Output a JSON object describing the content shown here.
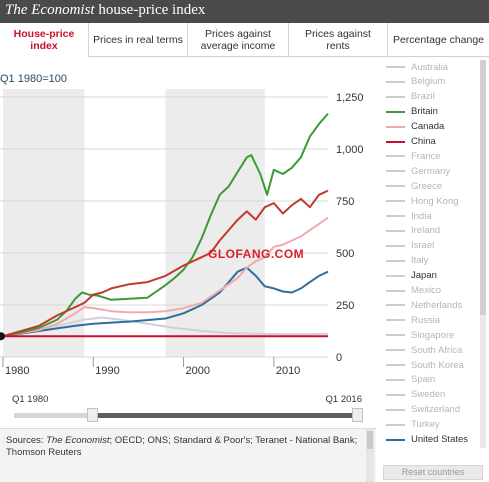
{
  "app_title_italic": "The Economist",
  "app_title_rest": " house-price index",
  "tabs": [
    {
      "label": "House-price index",
      "active": true
    },
    {
      "label": "Prices in real terms",
      "active": false
    },
    {
      "label": "Prices against average income",
      "active": false
    },
    {
      "label": "Prices against rents",
      "active": false
    },
    {
      "label": "Percentage change",
      "active": false
    }
  ],
  "base_label": "Q1 1980=100",
  "watermark": "GLOFANG.COM",
  "slider": {
    "start_label": "Q1 1980",
    "end_label": "Q1 2016"
  },
  "sources": {
    "prefix": "Sources: ",
    "italic": "The Economist",
    "rest": "; OECD; ONS; Standard & Poor's; Teranet - National Bank; Thomson Reuters"
  },
  "reset_label": "Reset countries",
  "legend": [
    {
      "name": "Australia",
      "active": false,
      "color": "#cccccc"
    },
    {
      "name": "Belgium",
      "active": false,
      "color": "#cccccc"
    },
    {
      "name": "Brazil",
      "active": false,
      "color": "#cccccc"
    },
    {
      "name": "Britain",
      "active": true,
      "color": "#3a9a35"
    },
    {
      "name": "Canada",
      "active": true,
      "color": "#f2a9ad"
    },
    {
      "name": "China",
      "active": true,
      "color": "#c8102e"
    },
    {
      "name": "France",
      "active": false,
      "color": "#cccccc"
    },
    {
      "name": "Germany",
      "active": false,
      "color": "#cccccc"
    },
    {
      "name": "Greece",
      "active": false,
      "color": "#cccccc"
    },
    {
      "name": "Hong Kong",
      "active": false,
      "color": "#cccccc"
    },
    {
      "name": "India",
      "active": false,
      "color": "#cccccc"
    },
    {
      "name": "Ireland",
      "active": false,
      "color": "#cccccc"
    },
    {
      "name": "Israel",
      "active": false,
      "color": "#cccccc"
    },
    {
      "name": "Italy",
      "active": false,
      "color": "#cccccc"
    },
    {
      "name": "Japan",
      "active": true,
      "color": "#d3cfd9"
    },
    {
      "name": "Mexico",
      "active": false,
      "color": "#cccccc"
    },
    {
      "name": "Netherlands",
      "active": false,
      "color": "#cccccc"
    },
    {
      "name": "Russia",
      "active": false,
      "color": "#cccccc"
    },
    {
      "name": "Singapore",
      "active": false,
      "color": "#cccccc"
    },
    {
      "name": "South Africa",
      "active": false,
      "color": "#cccccc"
    },
    {
      "name": "South Korea",
      "active": false,
      "color": "#cccccc"
    },
    {
      "name": "Spain",
      "active": false,
      "color": "#cccccc"
    },
    {
      "name": "Sweden",
      "active": false,
      "color": "#cccccc"
    },
    {
      "name": "Switzerland",
      "active": false,
      "color": "#cccccc"
    },
    {
      "name": "Turkey",
      "active": false,
      "color": "#cccccc"
    },
    {
      "name": "United States",
      "active": true,
      "color": "#2f6e9e"
    }
  ],
  "chart_data": {
    "type": "line",
    "title": "",
    "xlabel": "",
    "ylabel": "",
    "xlim": [
      1980,
      2016
    ],
    "ylim": [
      0,
      1250
    ],
    "x_ticks": [
      1980,
      1990,
      2000,
      2010
    ],
    "x_tick_labels": [
      "1980",
      "1990",
      "2000",
      "2010"
    ],
    "y_ticks": [
      0,
      250,
      500,
      750,
      1000,
      1250
    ],
    "y_tick_labels": [
      "0",
      "250",
      "500",
      "750",
      "1,000",
      "1,250"
    ],
    "baseline": 100,
    "grid": true,
    "shaded_ranges": [
      [
        1980,
        1989
      ],
      [
        1998,
        2009
      ]
    ],
    "series": [
      {
        "name": "Britain",
        "color": "#3a9a35",
        "x": [
          1980,
          1982,
          1984,
          1986,
          1987,
          1988,
          1988.75,
          1989.5,
          1990.5,
          1992,
          1994,
          1996,
          1998,
          1999,
          2000,
          2001,
          2002,
          2003,
          2004,
          2005,
          2006,
          2007,
          2007.5,
          2008.5,
          2009.25,
          2010,
          2011,
          2012,
          2013,
          2014,
          2015,
          2016
        ],
        "y": [
          100,
          118,
          140,
          180,
          220,
          280,
          310,
          300,
          295,
          275,
          280,
          285,
          345,
          380,
          420,
          480,
          570,
          680,
          780,
          820,
          890,
          960,
          970,
          880,
          780,
          900,
          880,
          910,
          960,
          1060,
          1120,
          1170
        ]
      },
      {
        "name": "Canada",
        "color": "#f2a9ad",
        "x": [
          1980,
          1982,
          1984,
          1986,
          1988,
          1989,
          1990,
          1992,
          1994,
          1996,
          1998,
          2000,
          2002,
          2004,
          2006,
          2007,
          2008,
          2009,
          2010,
          2011,
          2012,
          2013,
          2014,
          2015,
          2016
        ],
        "y": [
          100,
          115,
          130,
          160,
          210,
          240,
          235,
          220,
          215,
          215,
          220,
          235,
          260,
          320,
          380,
          430,
          460,
          480,
          530,
          540,
          560,
          580,
          610,
          640,
          670
        ]
      },
      {
        "name": "China",
        "color": "#c8102e",
        "x": [
          1980,
          1982,
          1984,
          1986,
          1987,
          1988,
          1989,
          1990,
          1992,
          1994,
          1996,
          1998,
          2000,
          2002,
          2004,
          2005,
          2006,
          2007,
          2008,
          2009,
          2010,
          2011,
          2012,
          2013,
          2014,
          2015,
          2016
        ],
        "y": [
          100,
          100,
          100,
          100,
          100,
          100,
          100,
          100,
          100,
          100,
          100,
          100,
          100,
          100,
          100,
          100,
          100,
          100,
          100,
          100,
          100,
          100,
          100,
          100,
          100,
          100,
          100
        ]
      },
      {
        "name": "Japan",
        "color": "#d3cfd9",
        "x": [
          1980,
          1983,
          1986,
          1989,
          1991,
          1993,
          1996,
          1999,
          2002,
          2005,
          2008,
          2011,
          2014,
          2016
        ],
        "y": [
          100,
          120,
          150,
          180,
          190,
          180,
          160,
          140,
          125,
          115,
          112,
          110,
          110,
          112
        ]
      },
      {
        "name": "United States",
        "color": "#2f6e9e",
        "x": [
          1980,
          1984,
          1988,
          1990,
          1994,
          1998,
          2000,
          2002,
          2004,
          2005,
          2006,
          2007,
          2008,
          2009,
          2010,
          2011,
          2012,
          2013,
          2014,
          2015,
          2016
        ],
        "y": [
          100,
          125,
          150,
          160,
          170,
          185,
          210,
          250,
          310,
          360,
          410,
          430,
          390,
          340,
          330,
          315,
          310,
          330,
          360,
          390,
          410
        ]
      }
    ],
    "extra_series_unlabeled": [
      {
        "color": "#c0392b",
        "x": [
          1980,
          1984,
          1986,
          1988,
          1989,
          1990,
          1991,
          1992,
          1994,
          1996,
          1998,
          2000,
          2002,
          2003,
          2004,
          2005,
          2006,
          2007,
          2008,
          2009,
          2010,
          2011,
          2012,
          2013,
          2014,
          2015,
          2016
        ],
        "y": [
          100,
          150,
          200,
          240,
          260,
          300,
          310,
          330,
          350,
          360,
          390,
          440,
          480,
          500,
          560,
          610,
          660,
          700,
          660,
          720,
          740,
          690,
          730,
          760,
          720,
          780,
          800
        ]
      }
    ]
  }
}
